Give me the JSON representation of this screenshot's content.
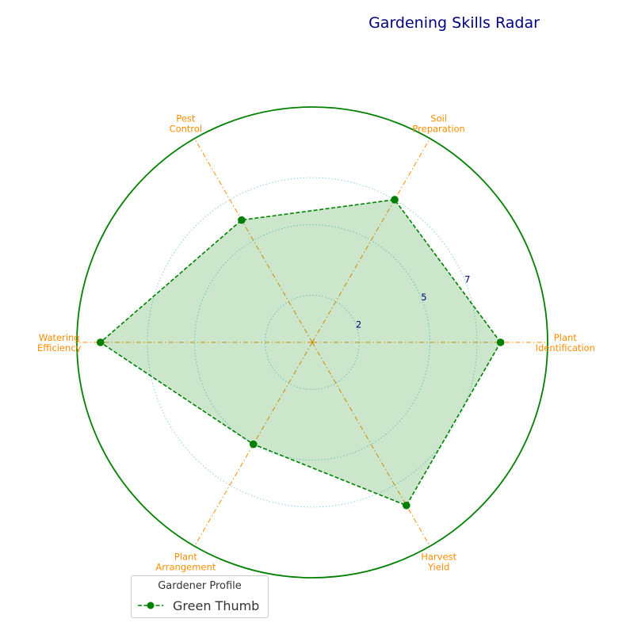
{
  "chart_data": {
    "type": "radar",
    "title": "Gardening Skills Radar",
    "categories": [
      "Plant Identification",
      "Soil Preparation",
      "Pest Control",
      "Watering Efficiency",
      "Plant Arrangement",
      "Harvest Yield"
    ],
    "category_lines": [
      [
        "Plant",
        "Identification"
      ],
      [
        "Soil",
        "Preparation"
      ],
      [
        "Pest",
        "Control"
      ],
      [
        "Watering",
        "Efficiency"
      ],
      [
        "Plant",
        "Arrangement"
      ],
      [
        "Harvest",
        "Yield"
      ]
    ],
    "series": [
      {
        "name": "Green Thumb",
        "values": [
          8,
          7,
          6,
          9,
          5,
          8
        ]
      }
    ],
    "rlim": [
      0,
      10
    ],
    "r_ticks": [
      2,
      5,
      7
    ],
    "r_tick_labels": [
      "2",
      "5",
      "7"
    ],
    "legend": {
      "title": "Gardener Profile",
      "placement": "lower-left"
    },
    "colors": {
      "title": "#000080",
      "category_label": "#ff8c00",
      "spoke": "#ff8c00",
      "ring": "#87ceeb",
      "outer_circle": "#008000",
      "series_line": "#008000",
      "series_fill": "#008000",
      "r_tick_label": "#000080"
    }
  }
}
